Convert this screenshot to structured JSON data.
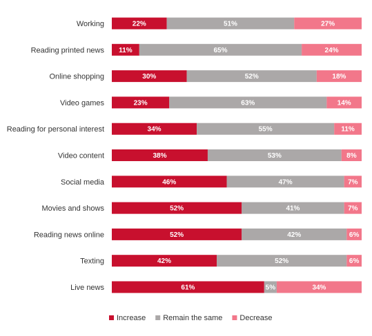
{
  "chart_data": {
    "type": "bar",
    "orientation": "horizontal",
    "stacked": true,
    "unit": "%",
    "grid": false,
    "legend_position": "bottom",
    "categories": [
      "Working",
      "Reading printed news",
      "Online shopping",
      "Video games",
      "Reading for personal interest",
      "Video content",
      "Social media",
      "Movies and shows",
      "Reading news online",
      "Texting",
      "Live news"
    ],
    "series": [
      {
        "name": "Increase",
        "color": "#c8102e",
        "values": [
          22,
          11,
          30,
          23,
          34,
          38,
          46,
          52,
          52,
          42,
          61
        ]
      },
      {
        "name": "Remain the same",
        "color": "#aba8a8",
        "values": [
          51,
          65,
          52,
          63,
          55,
          53,
          47,
          41,
          42,
          52,
          5
        ]
      },
      {
        "name": "Decrease",
        "color": "#f2778a",
        "values": [
          27,
          24,
          18,
          14,
          11,
          8,
          7,
          7,
          6,
          6,
          34
        ]
      }
    ]
  }
}
